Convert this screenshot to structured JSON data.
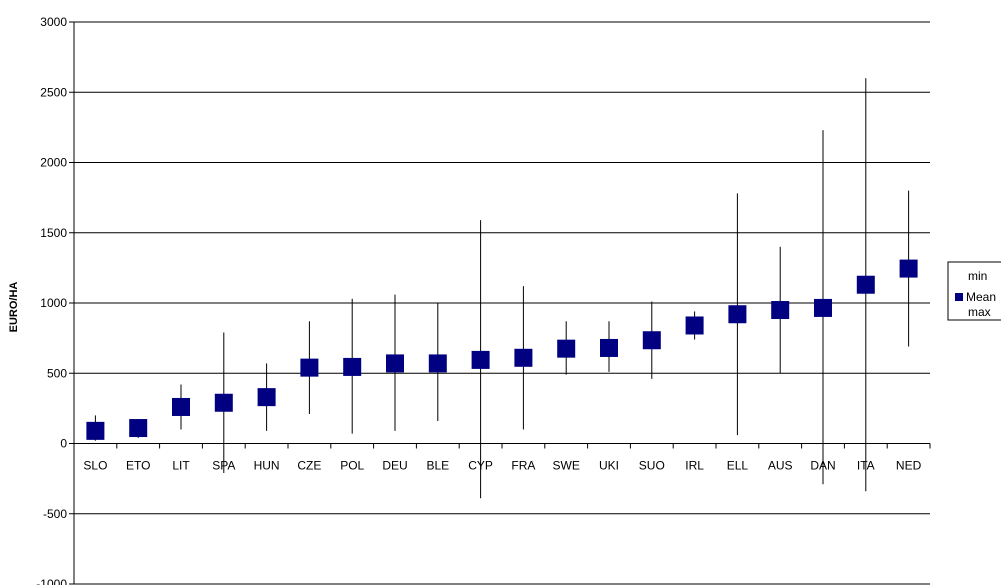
{
  "chart_data": {
    "type": "scatter",
    "title": "",
    "xlabel": "",
    "ylabel": "EURO/HA",
    "ylim": [
      -1000,
      3000
    ],
    "yticks": [
      -1000,
      -500,
      0,
      500,
      1000,
      1500,
      2000,
      2500,
      3000
    ],
    "grid": true,
    "legend_position": "right",
    "legend": [
      "min",
      "Mean",
      "max"
    ],
    "categories": [
      "SLO",
      "ETO",
      "LIT",
      "SPA",
      "HUN",
      "CZE",
      "POL",
      "DEU",
      "BLE",
      "CYP",
      "FRA",
      "SWE",
      "UKI",
      "SUO",
      "IRL",
      "ELL",
      "AUS",
      "DAN",
      "ITA",
      "NED"
    ],
    "series": [
      {
        "name": "min",
        "values": [
          20,
          40,
          100,
          -210,
          90,
          210,
          70,
          90,
          160,
          -390,
          100,
          490,
          510,
          460,
          740,
          60,
          500,
          -290,
          -340,
          690
        ]
      },
      {
        "name": "Mean",
        "values": [
          90,
          110,
          260,
          290,
          330,
          540,
          545,
          570,
          570,
          595,
          610,
          675,
          680,
          735,
          840,
          920,
          950,
          965,
          1130,
          1245
        ]
      },
      {
        "name": "max",
        "values": [
          200,
          170,
          420,
          790,
          570,
          870,
          1030,
          1060,
          1000,
          1590,
          1120,
          870,
          870,
          1010,
          940,
          1780,
          1400,
          2230,
          2600,
          1800
        ]
      }
    ],
    "colors": {
      "marker": "#000080",
      "errorbar": "#000000",
      "axis": "#000000",
      "grid": "#000000"
    }
  }
}
